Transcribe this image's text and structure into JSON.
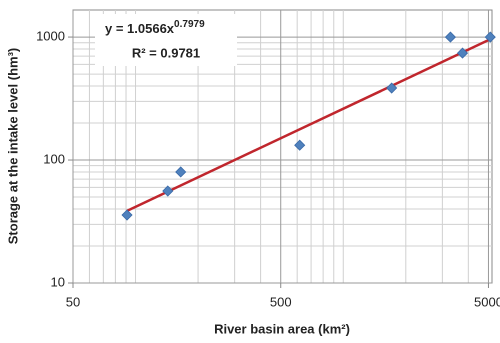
{
  "chart_data": {
    "type": "scatter",
    "xlabel": "River basin area (km²)",
    "ylabel": "Storage at the intake level (hm³)",
    "xlog": true,
    "ylog": true,
    "grid": true,
    "xlim": [
      50,
      5200
    ],
    "ylim": [
      10,
      1660
    ],
    "xticks": [
      50,
      500,
      5000
    ],
    "yticks": [
      10,
      100,
      1000
    ],
    "xminor": [
      60,
      70,
      80,
      90,
      100,
      200,
      300,
      400,
      600,
      700,
      800,
      900,
      1000,
      2000,
      3000,
      4000
    ],
    "yminor": [
      20,
      30,
      40,
      50,
      60,
      70,
      80,
      90,
      200,
      300,
      400,
      500,
      600,
      700,
      800,
      900
    ],
    "series": [
      {
        "color": "#4f81bd",
        "x": [
          91,
          143,
          165,
          617,
          1710,
          3280,
          3750,
          5100
        ],
        "values": [
          35.7,
          56,
          80,
          132,
          385,
          1000,
          741,
          1000
        ]
      }
    ],
    "trendline": {
      "color": "#c0262d",
      "x": [
        91,
        5100
      ],
      "values": [
        38.6,
        959
      ],
      "equation": "y = 1.0566x",
      "exponent": "0.7979",
      "r2": "R² = 0.9781"
    }
  }
}
